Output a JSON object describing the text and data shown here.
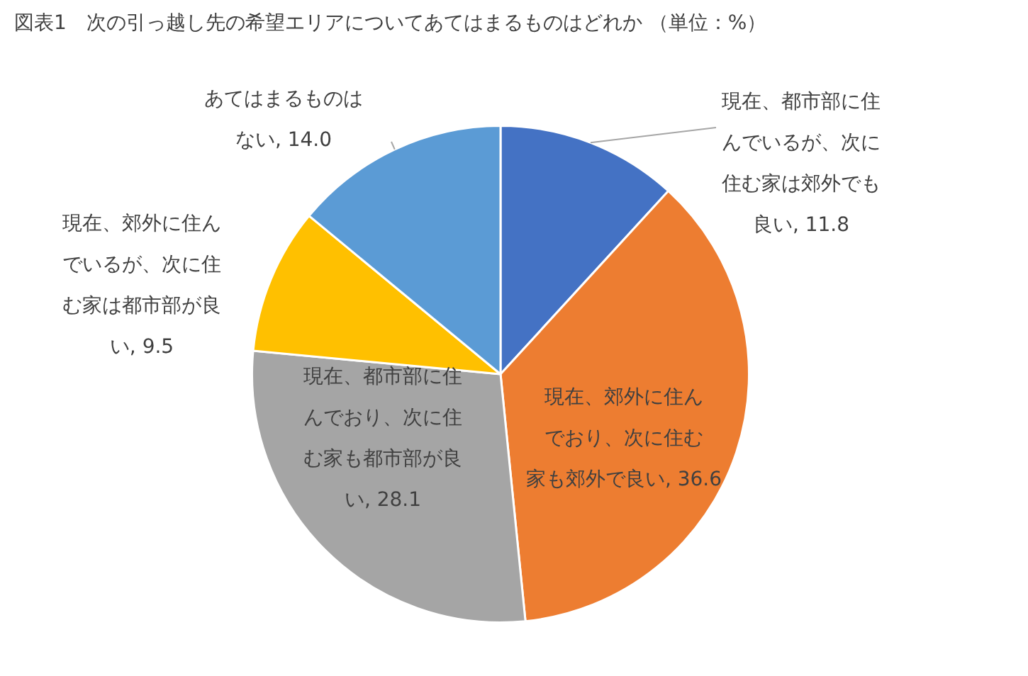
{
  "chart_data": {
    "type": "pie",
    "title": "図表1　次の引っ越し先の希望エリアについてあてはまるものはどれか （単位：%）",
    "categories": [
      "現在、都市部に住んでいるが、次に住む家は郊外でも良い",
      "現在、郊外に住んでおり、次に住む家も郊外で良い",
      "現在、都市部に住んでおり、次に住む家も都市部が良い",
      "現在、郊外に住んでいるが、次に住む家は都市部が良い",
      "あてはまるものはない"
    ],
    "values": [
      11.8,
      36.6,
      28.1,
      9.5,
      14.0
    ],
    "value_labels": [
      "11.8",
      "36.6",
      "28.1",
      "9.5",
      "14.0"
    ],
    "colors": [
      "#4472c4",
      "#ed7d31",
      "#a5a5a5",
      "#ffc000",
      "#5b9bd5"
    ],
    "legend": false
  }
}
